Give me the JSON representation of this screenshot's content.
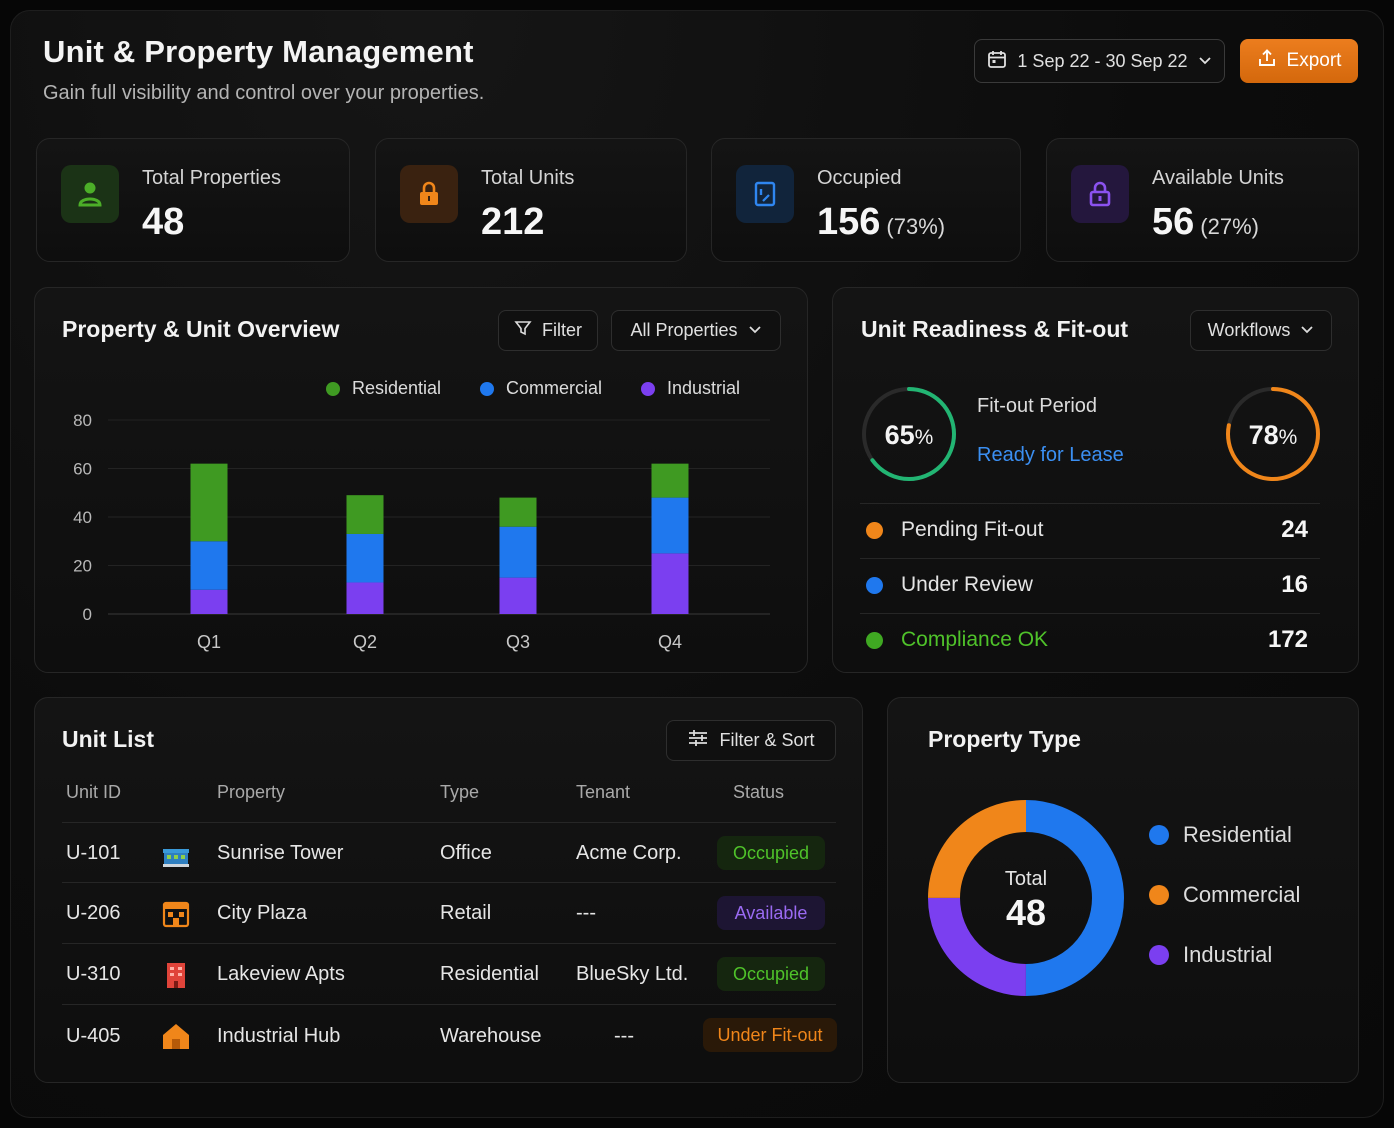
{
  "header": {
    "title": "Unit & Property Management",
    "subtitle": "Gain full visibility and control over your properties.",
    "date_range": "1 Sep 22 - 30 Sep 22",
    "export_label": "Export"
  },
  "stats": [
    {
      "label": "Total Properties",
      "value": "48",
      "pct": "",
      "icon": "user-icon",
      "color": "#4caf28"
    },
    {
      "label": "Total Units",
      "value": "212",
      "pct": "",
      "icon": "lock-icon",
      "color": "#f0861a"
    },
    {
      "label": "Occupied",
      "value": "156",
      "pct": "(73%)",
      "icon": "door-icon",
      "color": "#2f86f0"
    },
    {
      "label": "Available Units",
      "value": "56",
      "pct": "(27%)",
      "icon": "lock-icon",
      "color": "#8b52f0"
    }
  ],
  "overview": {
    "title": "Property & Unit Overview",
    "filter_label": "Filter",
    "select_label": "All Properties"
  },
  "chart_data": {
    "type": "bar",
    "stacked": true,
    "categories": [
      "Q1",
      "Q2",
      "Q3",
      "Q4"
    ],
    "series": [
      {
        "name": "Industrial",
        "color": "#7b3ff0",
        "values": [
          10,
          13,
          15,
          25
        ]
      },
      {
        "name": "Commercial",
        "color": "#1f78ee",
        "values": [
          20,
          20,
          21,
          23
        ]
      },
      {
        "name": "Residential",
        "color": "#3f9a22",
        "values": [
          32,
          16,
          12,
          14
        ]
      }
    ],
    "ylim": [
      0,
      80
    ],
    "yticks": [
      0,
      20,
      40,
      60,
      80
    ],
    "grid": true,
    "legend": "top-right"
  },
  "readiness": {
    "title": "Unit Readiness & Fit-out",
    "workflows_label": "Workflows",
    "left_ring": {
      "value": 65,
      "label": "65",
      "unit": "%",
      "color": "#22b573"
    },
    "right_ring": {
      "value": 78,
      "label": "78",
      "unit": "%",
      "color": "#f0861a"
    },
    "fitout_label": "Fit-out Period",
    "ready_label": "Ready for Lease",
    "rows": [
      {
        "label": "Pending Fit-out",
        "value": "24",
        "color": "#f0861a"
      },
      {
        "label": "Under Review",
        "value": "16",
        "color": "#1f78ee"
      },
      {
        "label": "Compliance OK",
        "value": "172",
        "color": "#3fa822"
      }
    ]
  },
  "unit_list": {
    "title": "Unit List",
    "filter_sort_label": "Filter & Sort",
    "columns": [
      "Unit ID",
      "Property",
      "Type",
      "Tenant",
      "Status"
    ],
    "rows": [
      {
        "id": "U-101",
        "property": "Sunrise Tower",
        "type": "Office",
        "tenant": "Acme Corp.",
        "status": "Occupied",
        "icon": "building-icon"
      },
      {
        "id": "U-206",
        "property": "City Plaza",
        "type": "Retail",
        "tenant": "---",
        "status": "Available",
        "icon": "store-icon"
      },
      {
        "id": "U-310",
        "property": "Lakeview Apts",
        "type": "Residential",
        "tenant": "BlueSky Ltd.",
        "status": "Occupied",
        "icon": "apartment-icon"
      },
      {
        "id": "U-405",
        "property": "Industrial Hub",
        "type": "Warehouse",
        "tenant": "---",
        "status": "Under Fit-out",
        "icon": "warehouse-icon"
      }
    ]
  },
  "property_type": {
    "title": "Property Type",
    "center_label": "Total",
    "center_value": "48",
    "chart_data": {
      "type": "pie",
      "slices": [
        {
          "name": "Residential",
          "value": 50,
          "color": "#1f78ee"
        },
        {
          "name": "Industrial",
          "value": 25,
          "color": "#7b3ff0"
        },
        {
          "name": "Commercial",
          "value": 25,
          "color": "#f0861a"
        }
      ]
    },
    "legend": [
      "Residential",
      "Commercial",
      "Industrial"
    ]
  }
}
